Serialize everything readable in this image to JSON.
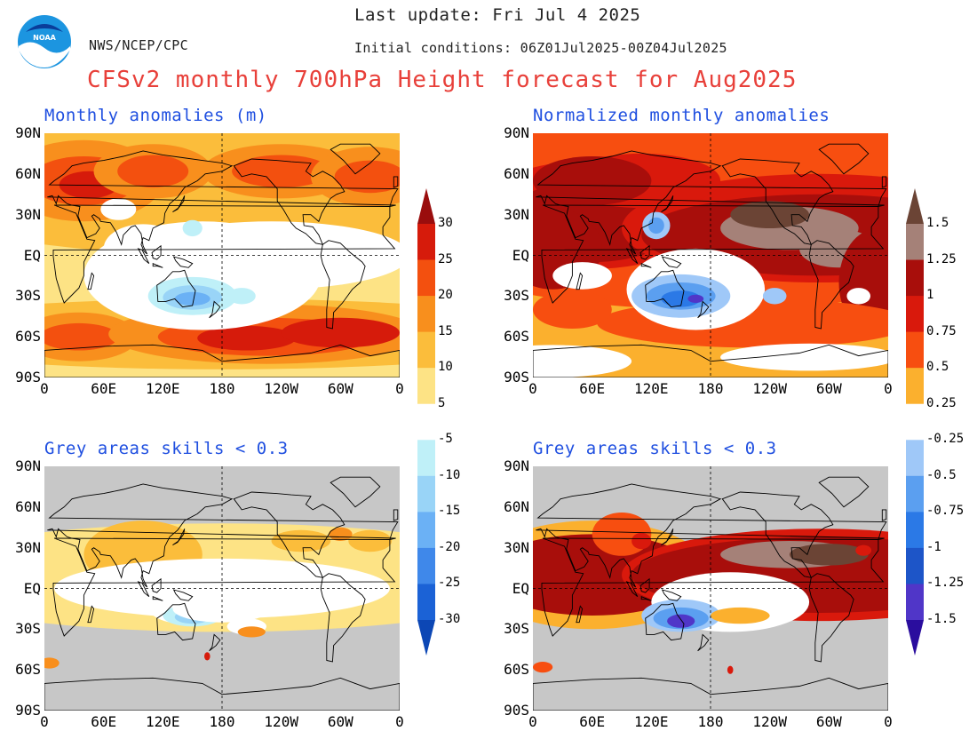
{
  "header": {
    "last_update": "Last update: Fri Jul 4 2025",
    "initial_conditions": "Initial conditions: 06Z01Jul2025-00Z04Jul2025",
    "agency": "NWS/NCEP/CPC",
    "logo_text": "NOAA",
    "title": "CFSv2 monthly 700hPa Height forecast for Aug2025"
  },
  "panels": {
    "top_left_title": "Monthly anomalies (m)",
    "top_right_title": "Normalized monthly anomalies",
    "bottom_left_title": "Grey areas skills < 0.3",
    "bottom_right_title": "Grey areas skills < 0.3"
  },
  "axes": {
    "lat_labels": [
      "90N",
      "60N",
      "30N",
      "EQ",
      "30S",
      "60S",
      "90S"
    ],
    "lon_labels": [
      "0",
      "60E",
      "120E",
      "180",
      "120W",
      "60W",
      "0"
    ]
  },
  "colorbar_left": {
    "labels": [
      "30",
      "25",
      "20",
      "15",
      "10",
      "5",
      "-5",
      "-10",
      "-15",
      "-20",
      "-25",
      "-30"
    ],
    "colors": [
      "#9a0d0d",
      "#d61b0b",
      "#f3500f",
      "#f88f1d",
      "#fbbd3b",
      "#fde385",
      "#ffffff",
      "#bff0f8",
      "#99d4f7",
      "#6bb1f5",
      "#3f88ea",
      "#1b62d6",
      "#0c47b5"
    ]
  },
  "colorbar_right": {
    "labels": [
      "1.5",
      "1.25",
      "1",
      "0.75",
      "0.5",
      "0.25",
      "-0.25",
      "-0.5",
      "-0.75",
      "-1",
      "-1.25",
      "-1.5"
    ],
    "colors": [
      "#6b4435",
      "#a58178",
      "#a80e0b",
      "#d9190c",
      "#f74e10",
      "#fbb02e",
      "#ffffff",
      "#9fc8f8",
      "#5b9ff0",
      "#2b79e6",
      "#1d55c8",
      "#5036c8",
      "#2a0d9e"
    ]
  },
  "map_colors": {
    "grey_mask": "#c7c7c7",
    "land_outline": "#000000",
    "ref_lines": "#000000"
  }
}
